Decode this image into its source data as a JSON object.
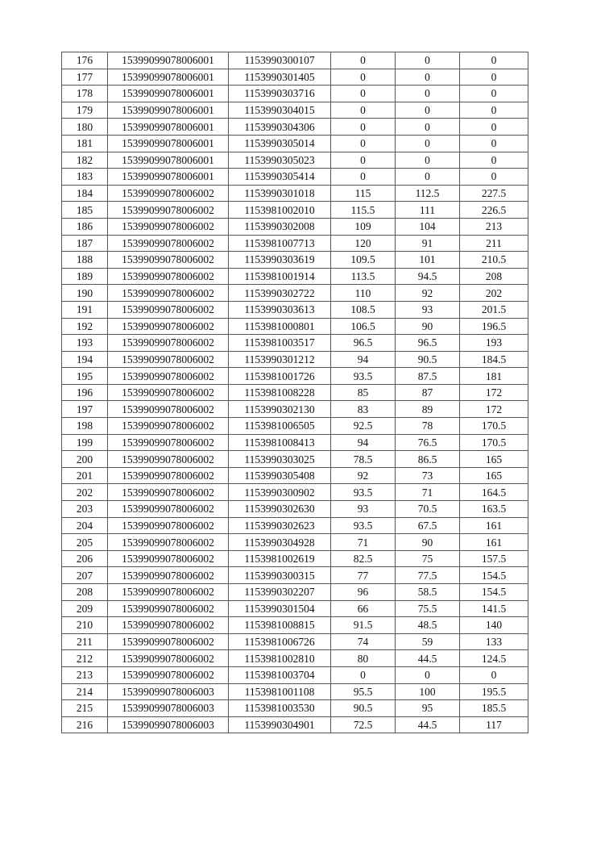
{
  "table": {
    "rows": [
      [
        "176",
        "15399099078006001",
        "1153990300107",
        "0",
        "0",
        "0"
      ],
      [
        "177",
        "15399099078006001",
        "1153990301405",
        "0",
        "0",
        "0"
      ],
      [
        "178",
        "15399099078006001",
        "1153990303716",
        "0",
        "0",
        "0"
      ],
      [
        "179",
        "15399099078006001",
        "1153990304015",
        "0",
        "0",
        "0"
      ],
      [
        "180",
        "15399099078006001",
        "1153990304306",
        "0",
        "0",
        "0"
      ],
      [
        "181",
        "15399099078006001",
        "1153990305014",
        "0",
        "0",
        "0"
      ],
      [
        "182",
        "15399099078006001",
        "1153990305023",
        "0",
        "0",
        "0"
      ],
      [
        "183",
        "15399099078006001",
        "1153990305414",
        "0",
        "0",
        "0"
      ],
      [
        "184",
        "15399099078006002",
        "1153990301018",
        "115",
        "112.5",
        "227.5"
      ],
      [
        "185",
        "15399099078006002",
        "1153981002010",
        "115.5",
        "111",
        "226.5"
      ],
      [
        "186",
        "15399099078006002",
        "1153990302008",
        "109",
        "104",
        "213"
      ],
      [
        "187",
        "15399099078006002",
        "1153981007713",
        "120",
        "91",
        "211"
      ],
      [
        "188",
        "15399099078006002",
        "1153990303619",
        "109.5",
        "101",
        "210.5"
      ],
      [
        "189",
        "15399099078006002",
        "1153981001914",
        "113.5",
        "94.5",
        "208"
      ],
      [
        "190",
        "15399099078006002",
        "1153990302722",
        "110",
        "92",
        "202"
      ],
      [
        "191",
        "15399099078006002",
        "1153990303613",
        "108.5",
        "93",
        "201.5"
      ],
      [
        "192",
        "15399099078006002",
        "1153981000801",
        "106.5",
        "90",
        "196.5"
      ],
      [
        "193",
        "15399099078006002",
        "1153981003517",
        "96.5",
        "96.5",
        "193"
      ],
      [
        "194",
        "15399099078006002",
        "1153990301212",
        "94",
        "90.5",
        "184.5"
      ],
      [
        "195",
        "15399099078006002",
        "1153981001726",
        "93.5",
        "87.5",
        "181"
      ],
      [
        "196",
        "15399099078006002",
        "1153981008228",
        "85",
        "87",
        "172"
      ],
      [
        "197",
        "15399099078006002",
        "1153990302130",
        "83",
        "89",
        "172"
      ],
      [
        "198",
        "15399099078006002",
        "1153981006505",
        "92.5",
        "78",
        "170.5"
      ],
      [
        "199",
        "15399099078006002",
        "1153981008413",
        "94",
        "76.5",
        "170.5"
      ],
      [
        "200",
        "15399099078006002",
        "1153990303025",
        "78.5",
        "86.5",
        "165"
      ],
      [
        "201",
        "15399099078006002",
        "1153990305408",
        "92",
        "73",
        "165"
      ],
      [
        "202",
        "15399099078006002",
        "1153990300902",
        "93.5",
        "71",
        "164.5"
      ],
      [
        "203",
        "15399099078006002",
        "1153990302630",
        "93",
        "70.5",
        "163.5"
      ],
      [
        "204",
        "15399099078006002",
        "1153990302623",
        "93.5",
        "67.5",
        "161"
      ],
      [
        "205",
        "15399099078006002",
        "1153990304928",
        "71",
        "90",
        "161"
      ],
      [
        "206",
        "15399099078006002",
        "1153981002619",
        "82.5",
        "75",
        "157.5"
      ],
      [
        "207",
        "15399099078006002",
        "1153990300315",
        "77",
        "77.5",
        "154.5"
      ],
      [
        "208",
        "15399099078006002",
        "1153990302207",
        "96",
        "58.5",
        "154.5"
      ],
      [
        "209",
        "15399099078006002",
        "1153990301504",
        "66",
        "75.5",
        "141.5"
      ],
      [
        "210",
        "15399099078006002",
        "1153981008815",
        "91.5",
        "48.5",
        "140"
      ],
      [
        "211",
        "15399099078006002",
        "1153981006726",
        "74",
        "59",
        "133"
      ],
      [
        "212",
        "15399099078006002",
        "1153981002810",
        "80",
        "44.5",
        "124.5"
      ],
      [
        "213",
        "15399099078006002",
        "1153981003704",
        "0",
        "0",
        "0"
      ],
      [
        "214",
        "15399099078006003",
        "1153981001108",
        "95.5",
        "100",
        "195.5"
      ],
      [
        "215",
        "15399099078006003",
        "1153981003530",
        "90.5",
        "95",
        "185.5"
      ],
      [
        "216",
        "15399099078006003",
        "1153990304901",
        "72.5",
        "44.5",
        "117"
      ]
    ]
  }
}
